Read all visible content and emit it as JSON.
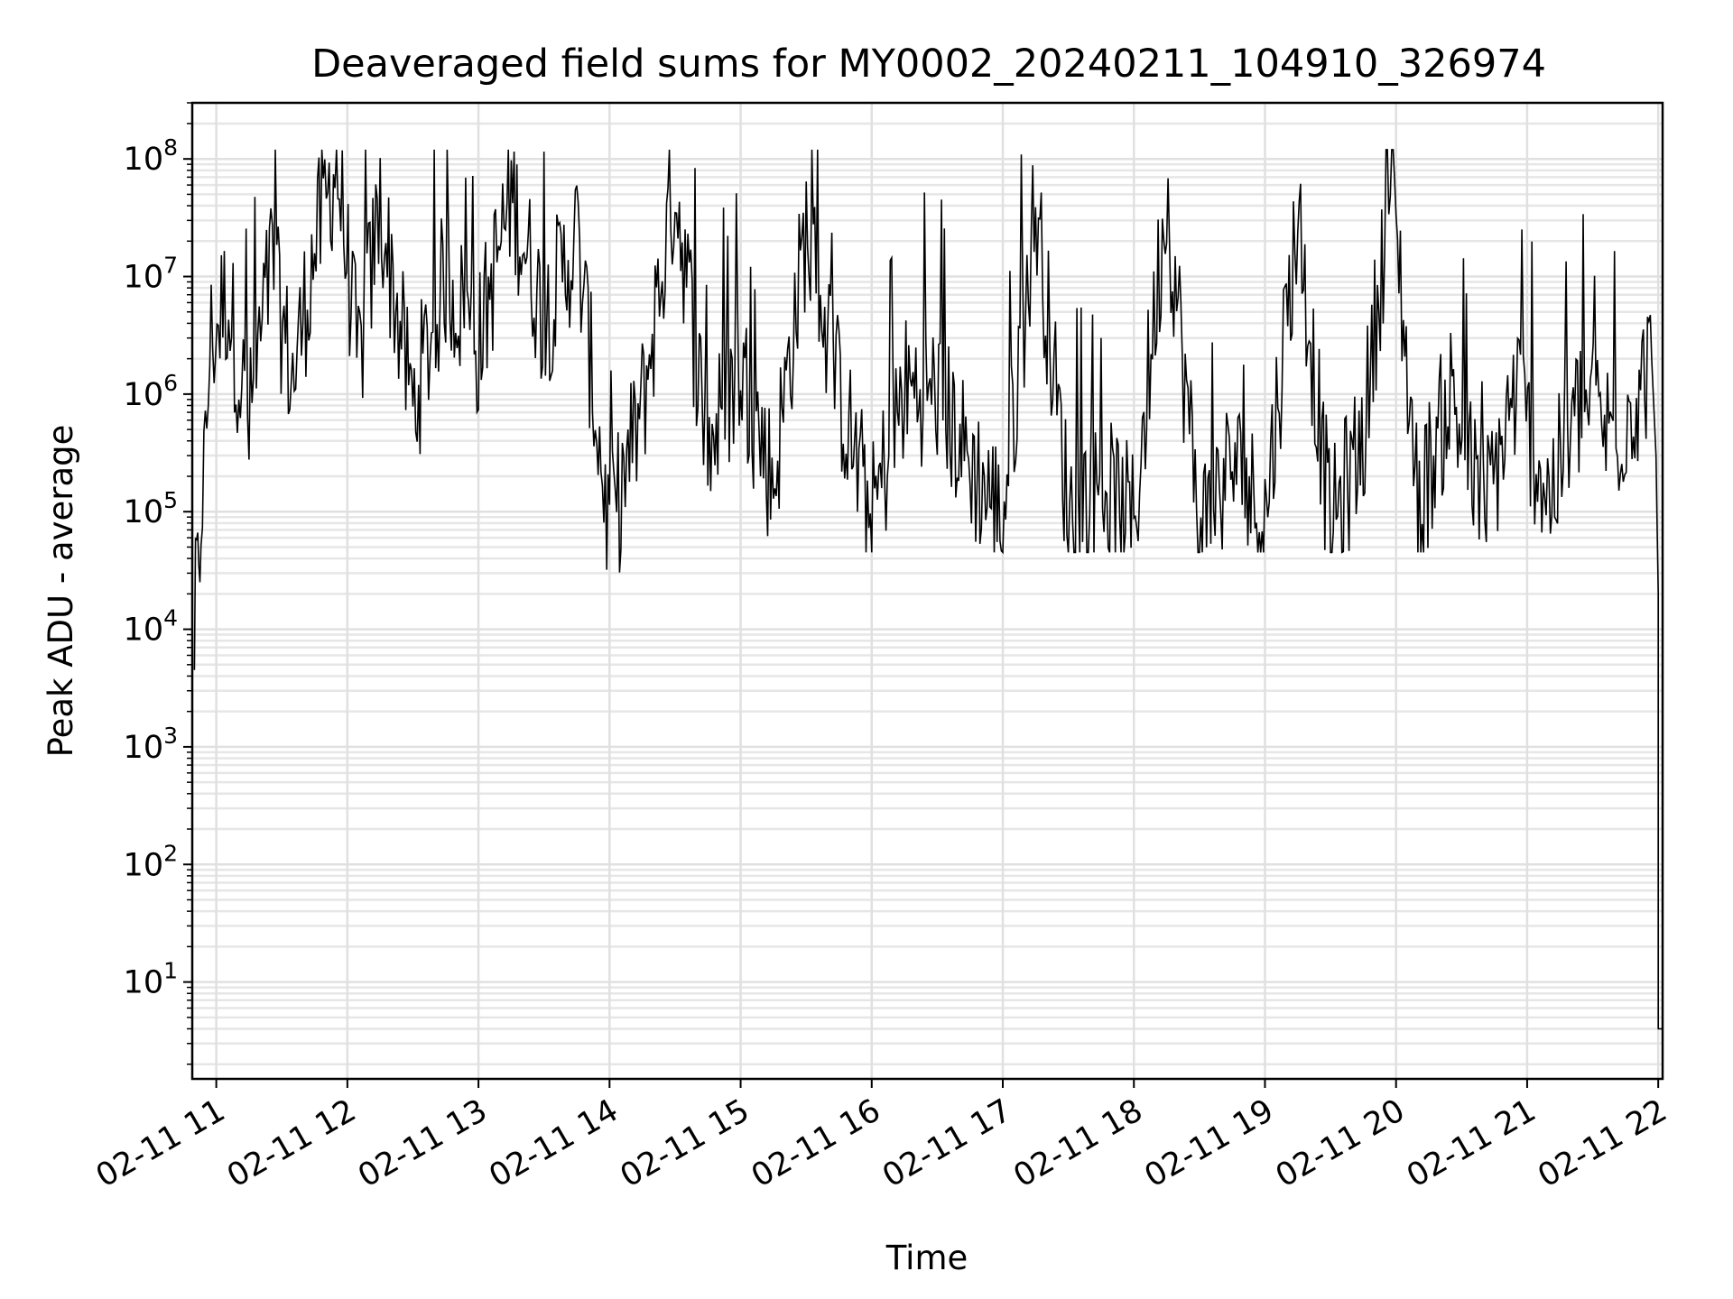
{
  "chart_data": {
    "type": "line",
    "title": "Deaveraged field sums for MY0002_20240211_104910_326974",
    "xlabel": "Time",
    "ylabel": "Peak ADU - average",
    "yscale": "log",
    "ylim": [
      1.5,
      300000000
    ],
    "xlim": [
      "2024-02-11 10:49",
      "2024-02-11 22:02"
    ],
    "grid": "both (major and minor), light gray",
    "legend": "none",
    "line_color": "#000000",
    "x_ticks": [
      {
        "label": "02-11 11",
        "time": "2024-02-11 11:00"
      },
      {
        "label": "02-11 12",
        "time": "2024-02-11 12:00"
      },
      {
        "label": "02-11 13",
        "time": "2024-02-11 13:00"
      },
      {
        "label": "02-11 14",
        "time": "2024-02-11 14:00"
      },
      {
        "label": "02-11 15",
        "time": "2024-02-11 15:00"
      },
      {
        "label": "02-11 16",
        "time": "2024-02-11 16:00"
      },
      {
        "label": "02-11 17",
        "time": "2024-02-11 17:00"
      },
      {
        "label": "02-11 18",
        "time": "2024-02-11 18:00"
      },
      {
        "label": "02-11 19",
        "time": "2024-02-11 19:00"
      },
      {
        "label": "02-11 20",
        "time": "2024-02-11 20:00"
      },
      {
        "label": "02-11 21",
        "time": "2024-02-11 21:00"
      },
      {
        "label": "02-11 22",
        "time": "2024-02-11 22:00"
      }
    ],
    "y_ticks": [
      {
        "base": "10",
        "exp": "1",
        "value": 10
      },
      {
        "base": "10",
        "exp": "2",
        "value": 100
      },
      {
        "base": "10",
        "exp": "3",
        "value": 1000
      },
      {
        "base": "10",
        "exp": "4",
        "value": 10000
      },
      {
        "base": "10",
        "exp": "5",
        "value": 100000
      },
      {
        "base": "10",
        "exp": "6",
        "value": 1000000
      },
      {
        "base": "10",
        "exp": "7",
        "value": 10000000
      },
      {
        "base": "10",
        "exp": "8",
        "value": 100000000
      }
    ],
    "series": [
      {
        "values_note": "dense noisy series; sampled points (time, value)",
        "points": [
          [
            "2024-02-11 10:50",
            6000
          ],
          [
            "2024-02-11 10:51",
            40000
          ],
          [
            "2024-02-11 10:52",
            15000
          ],
          [
            "2024-02-11 10:53",
            150000
          ],
          [
            "2024-02-11 10:55",
            300000
          ],
          [
            "2024-02-11 10:57",
            3000000
          ],
          [
            "2024-02-11 11:05",
            8000000
          ],
          [
            "2024-02-11 11:15",
            600000
          ],
          [
            "2024-02-11 11:25",
            15000000
          ],
          [
            "2024-02-11 11:35",
            1500000
          ],
          [
            "2024-02-11 11:45",
            20000000
          ],
          [
            "2024-02-11 11:55",
            110000000
          ],
          [
            "2024-02-11 12:05",
            2000000
          ],
          [
            "2024-02-11 12:15",
            45000000
          ],
          [
            "2024-02-11 12:30",
            900000
          ],
          [
            "2024-02-11 12:45",
            12000000
          ],
          [
            "2024-02-11 13:00",
            3000000
          ],
          [
            "2024-02-11 13:15",
            60000000
          ],
          [
            "2024-02-11 13:30",
            5000000
          ],
          [
            "2024-02-11 13:45",
            25000000
          ],
          [
            "2024-02-11 14:00",
            70000
          ],
          [
            "2024-02-11 14:15",
            900000
          ],
          [
            "2024-02-11 14:30",
            75000000
          ],
          [
            "2024-02-11 14:45",
            400000
          ],
          [
            "2024-02-11 15:00",
            2000000
          ],
          [
            "2024-02-11 15:15",
            200000
          ],
          [
            "2024-02-11 15:30",
            30000000
          ],
          [
            "2024-02-11 15:45",
            1200000
          ],
          [
            "2024-02-11 16:00",
            100000
          ],
          [
            "2024-02-11 16:15",
            1300000
          ],
          [
            "2024-02-11 16:30",
            1200000
          ],
          [
            "2024-02-11 16:45",
            300000
          ],
          [
            "2024-02-11 17:00",
            100000
          ],
          [
            "2024-02-11 17:15",
            50000000
          ],
          [
            "2024-02-11 17:30",
            120000
          ],
          [
            "2024-02-11 17:45",
            200000
          ],
          [
            "2024-02-11 18:00",
            90000
          ],
          [
            "2024-02-11 18:15",
            60000000
          ],
          [
            "2024-02-11 18:30",
            80000
          ],
          [
            "2024-02-11 18:45",
            300000
          ],
          [
            "2024-02-11 19:00",
            100000
          ],
          [
            "2024-02-11 19:15",
            40000000
          ],
          [
            "2024-02-11 19:30",
            80000
          ],
          [
            "2024-02-11 19:45",
            500000
          ],
          [
            "2024-02-11 19:58",
            100000000
          ],
          [
            "2024-02-11 20:10",
            120000
          ],
          [
            "2024-02-11 20:25",
            1200000
          ],
          [
            "2024-02-11 20:40",
            100000
          ],
          [
            "2024-02-11 20:55",
            1300000
          ],
          [
            "2024-02-11 21:10",
            150000
          ],
          [
            "2024-02-11 21:25",
            1000000
          ],
          [
            "2024-02-11 21:40",
            500000
          ],
          [
            "2024-02-11 21:50",
            1200000
          ],
          [
            "2024-02-11 21:57",
            2000000
          ],
          [
            "2024-02-11 21:59",
            300000
          ],
          [
            "2024-02-11 22:00",
            20000
          ],
          [
            "2024-02-11 22:00",
            4
          ],
          [
            "2024-02-11 22:02",
            4
          ]
        ]
      }
    ]
  }
}
